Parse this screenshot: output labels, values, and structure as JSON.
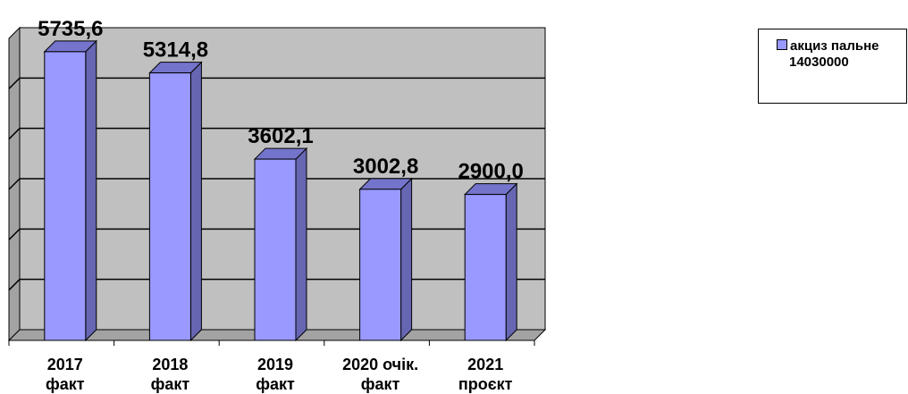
{
  "chart_data": {
    "type": "bar",
    "categories": [
      [
        "2017",
        "факт"
      ],
      [
        "2018",
        "факт"
      ],
      [
        "2019",
        "факт"
      ],
      [
        "2020 очік.",
        "факт"
      ],
      [
        "2021",
        "проєкт"
      ]
    ],
    "series": [
      {
        "name": "акциз пальне 14030000",
        "values": [
          5735.6,
          5314.8,
          3602.1,
          3002.8,
          2900.0
        ],
        "labels": [
          "5735,6",
          "5314,8",
          "3602,1",
          "3002,8",
          "2900,0"
        ]
      }
    ],
    "legend": {
      "line1": "акциз пальне",
      "line2": "14030000",
      "position": "top-right"
    },
    "ylim": [
      0,
      6000
    ],
    "grid": true,
    "colors": {
      "bar_front": "#9999ff",
      "bar_side": "#6666b3",
      "bar_top": "#7474cc",
      "wall": "#c0c0c0",
      "floor": "#a3a3a3"
    }
  }
}
